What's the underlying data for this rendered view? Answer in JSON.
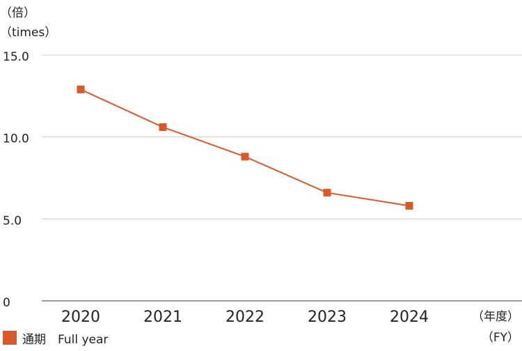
{
  "chart_data": {
    "type": "line",
    "title": "",
    "ylabel_lines": [
      "（倍）",
      "（times）"
    ],
    "xlabel_lines": [
      "（年度）",
      "（FY）"
    ],
    "ylim": [
      0,
      15.0
    ],
    "y_ticks": [
      {
        "value": 15.0,
        "label": "15.0"
      },
      {
        "value": 10.0,
        "label": "10.0"
      },
      {
        "value": 5.0,
        "label": "5.0"
      },
      {
        "value": 0,
        "label": "0"
      }
    ],
    "categories": [
      "2020",
      "2021",
      "2022",
      "2023",
      "2024"
    ],
    "series": [
      {
        "name": "通期　Full year",
        "values": [
          12.9,
          10.6,
          8.8,
          6.6,
          5.8
        ],
        "color": "#d9592a",
        "marker": "square"
      }
    ],
    "grid": true,
    "legend_position": "bottom-left"
  }
}
